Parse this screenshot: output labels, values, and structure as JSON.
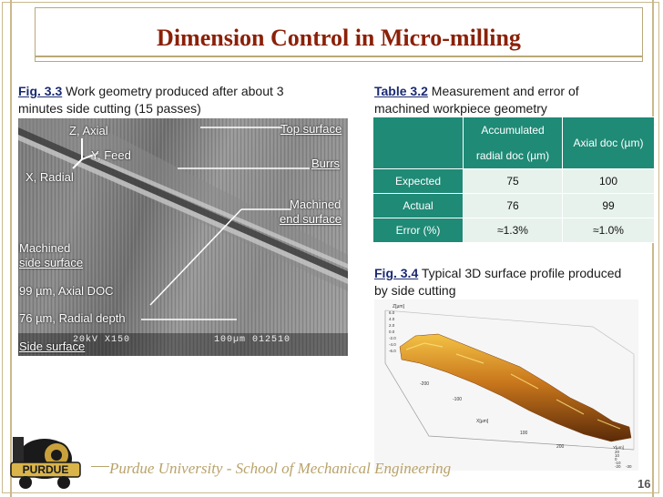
{
  "title": "Dimension Control in Micro-milling",
  "fig33": {
    "label": "Fig. 3.3",
    "text_line1": " Work geometry produced after about 3",
    "text_line2": "minutes side cutting (15 passes)"
  },
  "sem_labels": {
    "z_axial": "Z, Axial",
    "y_feed": "Y, Feed",
    "x_radial": "X, Radial",
    "top_surface": "Top surface",
    "burrs": "Burrs",
    "machined_end_1": "Machined",
    "machined_end_2": "end surface",
    "machined_side_1": "Machined",
    "machined_side_2": "side surface",
    "axial_doc": "99 µm, Axial DOC",
    "radial_depth": "76 µm, Radial depth",
    "side_surface": "Side surface",
    "scale_left": "20kV  X150",
    "scale_right": "100µm  012510"
  },
  "table32": {
    "label": "Table 3.2",
    "text_line1": " Measurement and error of",
    "text_line2": "machined workpiece geometry",
    "col1_line1": "Accumulated",
    "col1_line2": "radial doc (µm)",
    "col2": "Axial doc (µm)",
    "rows": [
      {
        "label": "Expected",
        "radial": "75",
        "axial": "100"
      },
      {
        "label": "Actual",
        "radial": "76",
        "axial": "99"
      },
      {
        "label": "Error (%)",
        "radial": "≈1.3%",
        "axial": "≈1.0%"
      }
    ]
  },
  "fig34": {
    "label": "Fig. 3.4",
    "text_line1": " Typical 3D surface profile produced",
    "text_line2": "by side cutting"
  },
  "plot": {
    "z_label": "Z[µm]",
    "z_ticks": [
      "6.0",
      "4.0",
      "2.0",
      "0.0",
      "-2.0",
      "-4.0",
      "-6.0"
    ],
    "x_label": "X[µm]",
    "x_ticks": [
      "-200",
      "-100",
      "100",
      "200"
    ],
    "y_label": "Y[µm]",
    "y_ticks": [
      "20",
      "10",
      "0",
      "-10",
      "-20",
      "-30"
    ]
  },
  "footer": {
    "school": "Purdue University - School of Mechanical Engineering",
    "logo_text": "PURDUE",
    "page": "16"
  },
  "colors": {
    "title": "#8b2008",
    "table_header": "#1f8a76",
    "table_cell": "#e7f2ec",
    "caption_label": "#1a2a72",
    "footer": "#b8a36a"
  }
}
